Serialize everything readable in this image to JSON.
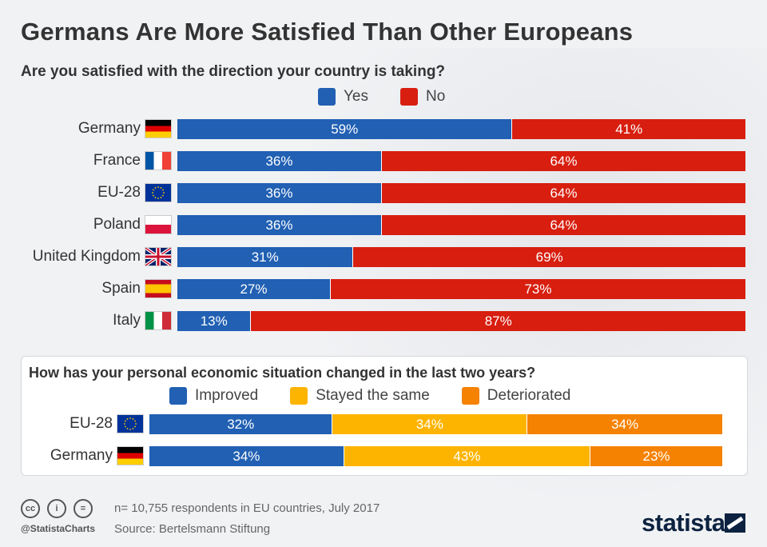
{
  "title": "Germans Are More Satisfied Than Other Europeans",
  "colors": {
    "yes": "#2160b3",
    "no": "#d71e0f",
    "improved": "#2160b3",
    "same": "#fdb400",
    "deteriorated": "#f58200"
  },
  "chart_data": [
    {
      "type": "bar",
      "stacked": true,
      "orientation": "horizontal",
      "title": "Are you satisfied with the direction your country is taking?",
      "legend_placement": "top",
      "categories": [
        "Germany",
        "France",
        "EU-28",
        "Poland",
        "United Kingdom",
        "Spain",
        "Italy"
      ],
      "flags": [
        "de-flag",
        "fr-flag",
        "eu-flag",
        "pl-flag",
        "uk-flag",
        "es-flag",
        "it-flag"
      ],
      "series": [
        {
          "name": "Yes",
          "color_key": "yes",
          "values": [
            59,
            36,
            36,
            36,
            31,
            27,
            13
          ]
        },
        {
          "name": "No",
          "color_key": "no",
          "values": [
            41,
            64,
            64,
            64,
            69,
            73,
            87
          ]
        }
      ],
      "xlim": [
        0,
        100
      ],
      "grid": false
    },
    {
      "type": "bar",
      "stacked": true,
      "orientation": "horizontal",
      "title": "How has your personal economic situation changed in the last two years?",
      "legend_placement": "top",
      "categories": [
        "EU-28",
        "Germany"
      ],
      "flags": [
        "eu-flag",
        "de-flag"
      ],
      "series": [
        {
          "name": "Improved",
          "color_key": "improved",
          "values": [
            32,
            34
          ]
        },
        {
          "name": "Stayed the same",
          "color_key": "same",
          "values": [
            34,
            43
          ]
        },
        {
          "name": "Deteriorated",
          "color_key": "deteriorated",
          "values": [
            34,
            23
          ]
        }
      ],
      "xlim": [
        0,
        100
      ],
      "grid": false
    }
  ],
  "footer": {
    "note": "n= 10,755 respondents in EU countries, July 2017",
    "source": "Source: Bertelsmann Stiftung",
    "handle": "@StatistaCharts",
    "brand": "statista",
    "license_icons": [
      "cc-icon",
      "by-icon",
      "nd-icon"
    ]
  }
}
